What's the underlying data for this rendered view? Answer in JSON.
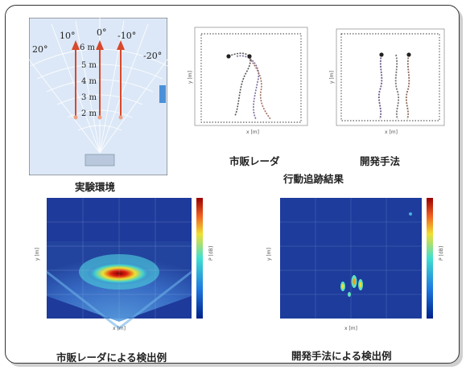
{
  "env": {
    "caption": "実験環境",
    "angles": [
      "20°",
      "10°",
      "0°",
      "-10°",
      "-20°"
    ],
    "ranges": [
      "6 m",
      "5 m",
      "4 m",
      "3 m",
      "2 m"
    ]
  },
  "tracking": {
    "title": "行動追跡結果",
    "left_caption": "市販レーダ",
    "right_caption": "開発手法",
    "x_axis_label": "x [m]",
    "y_axis_label": "y [m]"
  },
  "heatmaps": {
    "left_caption": "市販レーダによる検出例",
    "right_caption": "開発手法による検出例",
    "x_axis_label": "x [m]",
    "y_axis_label": "y [m]",
    "colorbar_label": "P [dB]"
  },
  "colors": {
    "border": "#333333",
    "env_bg": "#dce8f7",
    "arrow": "#d9482a",
    "radar": "#b9c8dc",
    "wall": "#4a90d9",
    "heatmap_bg": "#1d3c9c"
  }
}
